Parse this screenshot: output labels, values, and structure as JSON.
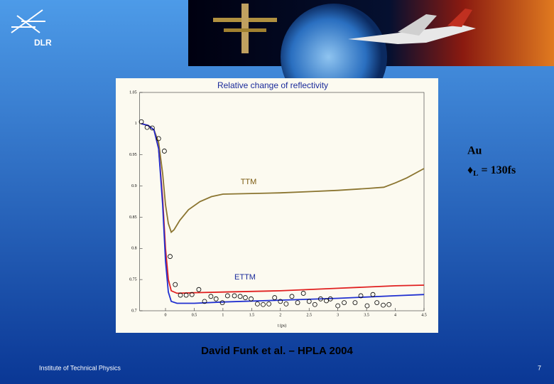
{
  "logo": {
    "text": "DLR"
  },
  "chart_data": {
    "type": "line",
    "title": "Relative change of reflectivity",
    "x_label": "t (ps)",
    "xlim": [
      -0.45,
      4.5
    ],
    "xticks": [
      0,
      0.5,
      1,
      1.5,
      2,
      2.5,
      3,
      3.5,
      4,
      4.5
    ],
    "ylim": [
      0.7,
      1.05
    ],
    "yticks": [
      0.7,
      0.75,
      0.8,
      0.85,
      0.9,
      0.95,
      1,
      1.05
    ],
    "grid": false,
    "series": [
      {
        "name": "TTM",
        "color": "#8b7530",
        "x": [
          -0.42,
          -0.3,
          -0.2,
          -0.12,
          -0.05,
          0.0,
          0.05,
          0.1,
          0.15,
          0.25,
          0.4,
          0.6,
          0.8,
          1.0,
          1.5,
          2.0,
          2.5,
          3.0,
          3.5,
          3.8,
          4.0,
          4.2,
          4.5
        ],
        "values": [
          1.0,
          0.997,
          0.99,
          0.97,
          0.92,
          0.87,
          0.84,
          0.826,
          0.83,
          0.845,
          0.862,
          0.875,
          0.883,
          0.887,
          0.888,
          0.889,
          0.891,
          0.893,
          0.896,
          0.898,
          0.905,
          0.913,
          0.928
        ]
      },
      {
        "name": "ETTM",
        "color": "#e02020",
        "x": [
          -0.42,
          -0.3,
          -0.2,
          -0.12,
          -0.05,
          0.0,
          0.05,
          0.1,
          0.2,
          0.5,
          1.0,
          2.0,
          3.0,
          4.0,
          4.5
        ],
        "values": [
          1.0,
          0.997,
          0.99,
          0.96,
          0.88,
          0.8,
          0.75,
          0.732,
          0.728,
          0.729,
          0.73,
          0.732,
          0.736,
          0.74,
          0.741
        ]
      },
      {
        "color": "#2030d0",
        "x": [
          -0.42,
          -0.3,
          -0.2,
          -0.12,
          -0.05,
          0.0,
          0.05,
          0.1,
          0.2,
          0.5,
          1.0,
          2.0,
          3.0,
          4.0,
          4.5
        ],
        "values": [
          1.0,
          0.997,
          0.99,
          0.96,
          0.87,
          0.78,
          0.73,
          0.715,
          0.712,
          0.712,
          0.714,
          0.717,
          0.72,
          0.724,
          0.726
        ]
      },
      {
        "type": "scatter",
        "color": "#000000",
        "x": [
          -0.42,
          -0.32,
          -0.23,
          -0.12,
          -0.02,
          0.08,
          0.17,
          0.26,
          0.36,
          0.46,
          0.58,
          0.68,
          0.79,
          0.88,
          0.99,
          1.08,
          1.2,
          1.3,
          1.39,
          1.49,
          1.6,
          1.7,
          1.8,
          1.9,
          2.0,
          2.1,
          2.2,
          2.3,
          2.4,
          2.5,
          2.6,
          2.7,
          2.8,
          2.87,
          3.0,
          3.11,
          3.3,
          3.4,
          3.51,
          3.61,
          3.68,
          3.79,
          3.89
        ],
        "values": [
          1.003,
          0.994,
          0.993,
          0.976,
          0.956,
          0.787,
          0.742,
          0.725,
          0.725,
          0.726,
          0.734,
          0.715,
          0.723,
          0.719,
          0.713,
          0.724,
          0.724,
          0.723,
          0.721,
          0.719,
          0.711,
          0.71,
          0.711,
          0.721,
          0.715,
          0.711,
          0.723,
          0.713,
          0.728,
          0.715,
          0.71,
          0.719,
          0.716,
          0.719,
          0.708,
          0.713,
          0.713,
          0.724,
          0.708,
          0.726,
          0.713,
          0.709,
          0.71
        ]
      }
    ]
  },
  "annotation": {
    "material": "Au",
    "symbol": "♦",
    "subscript": "L",
    "rest": "= 130fs"
  },
  "caption": "David Funk et al. – HPLA 2004",
  "footer": "Institute of Technical Physics",
  "page_number": "7"
}
